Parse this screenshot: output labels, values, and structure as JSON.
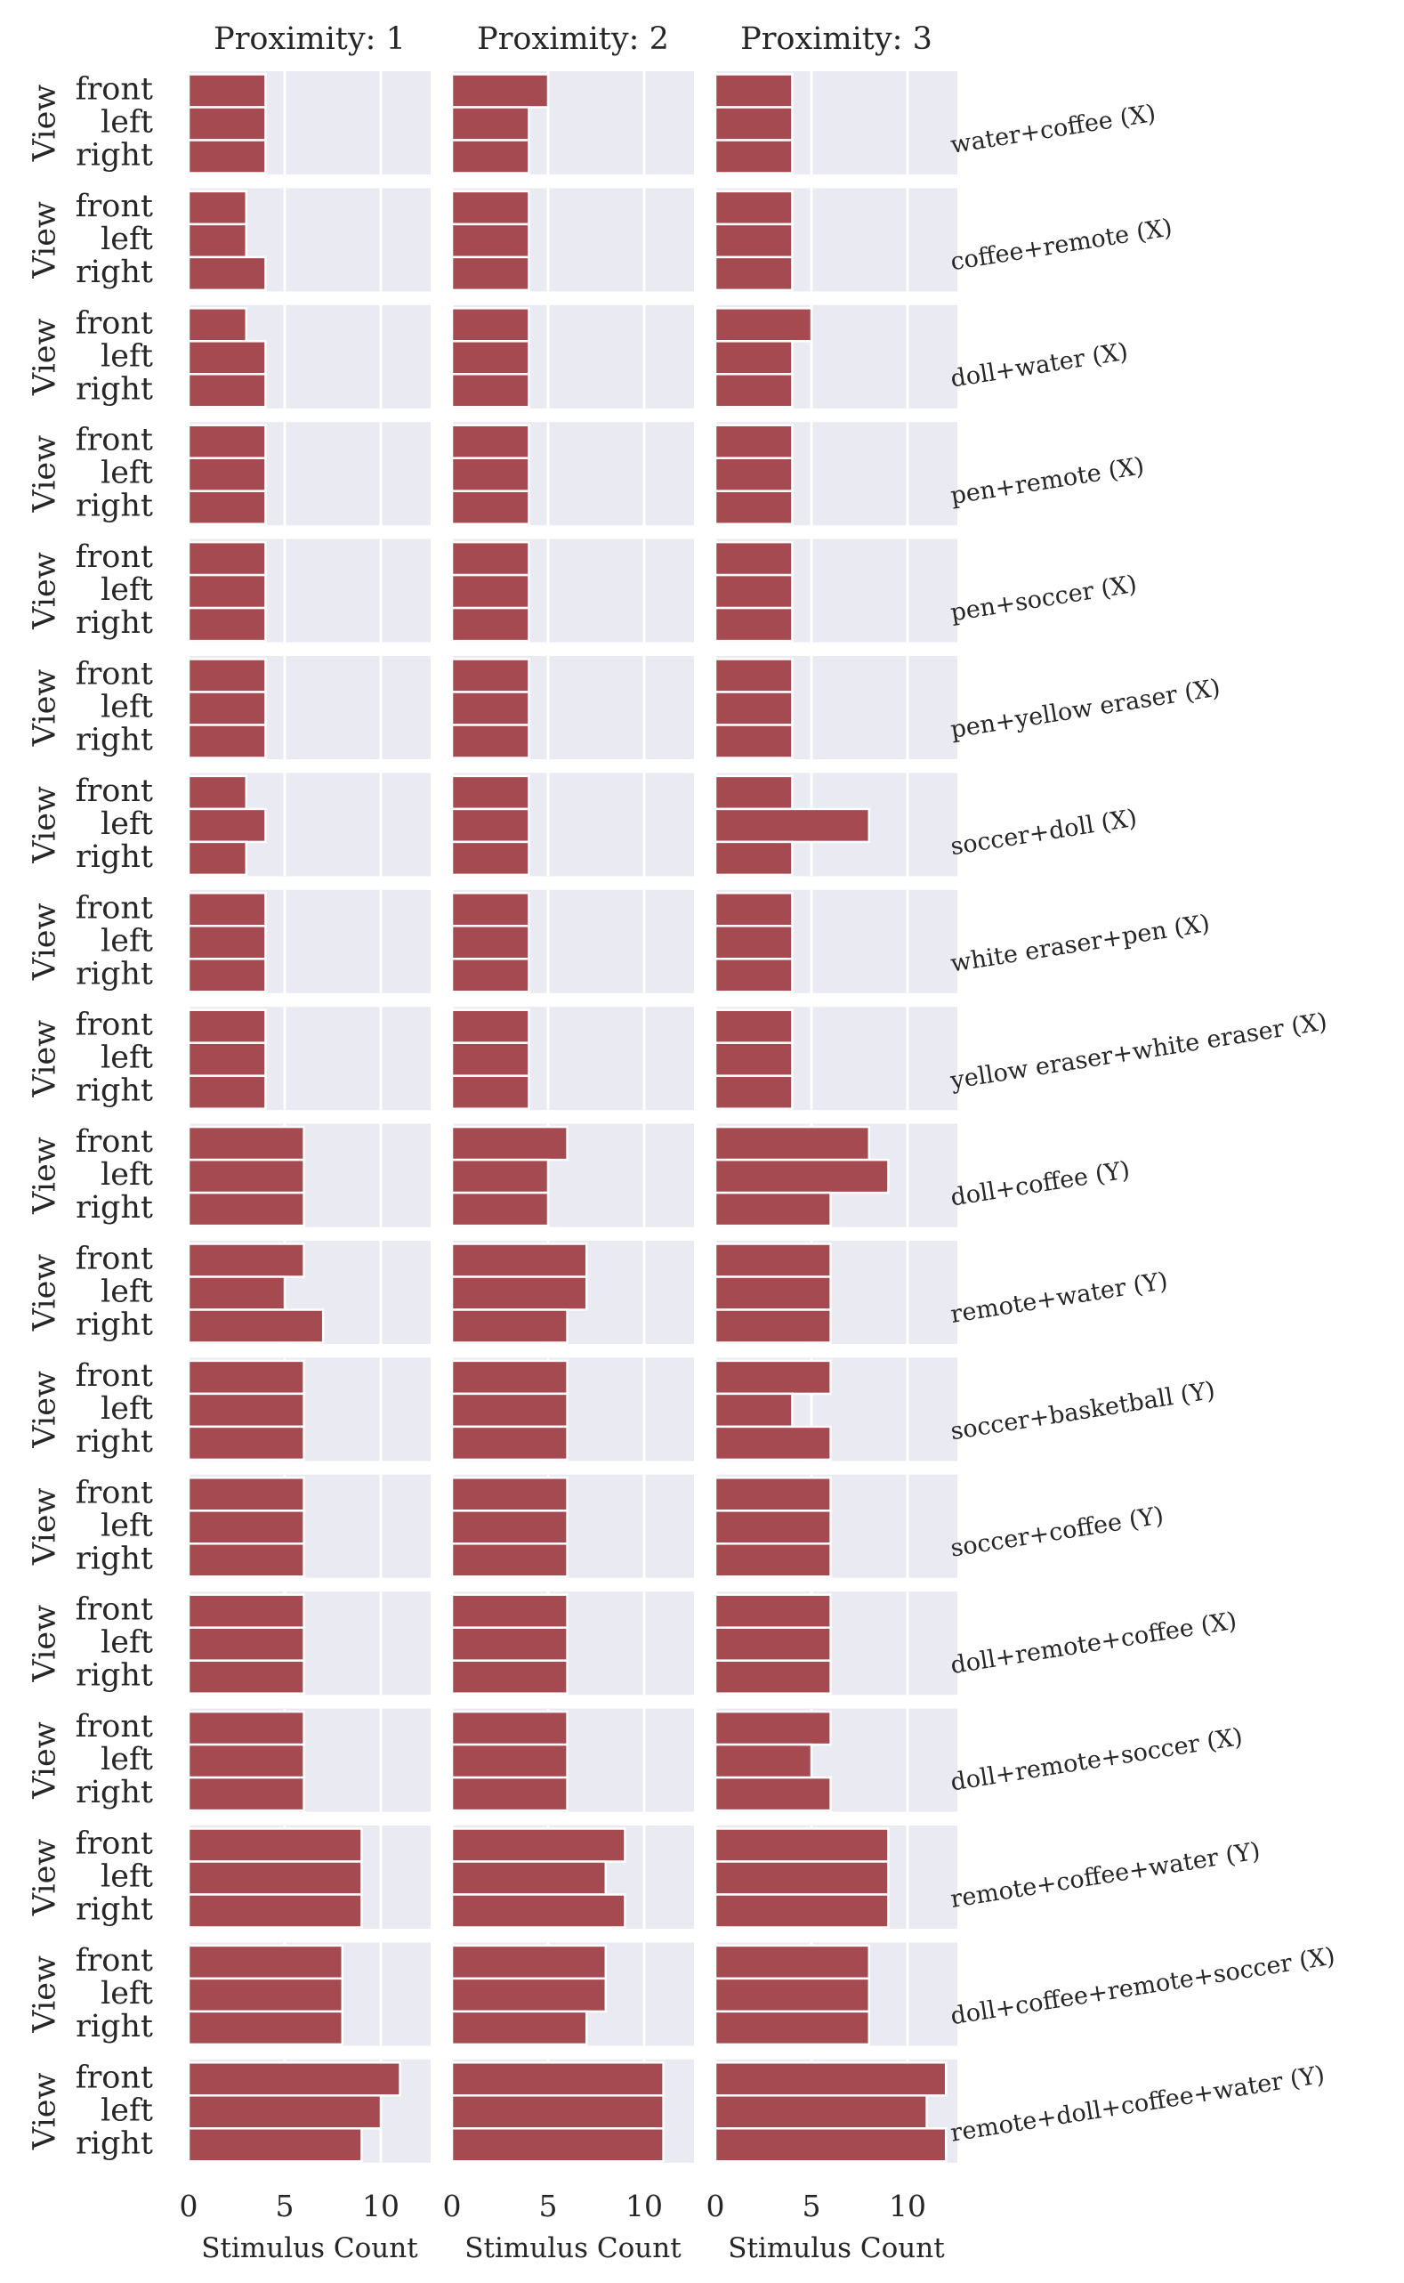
{
  "chart_data": {
    "type": "bar",
    "orientation": "horizontal",
    "facet_columns": [
      "Proximity: 1",
      "Proximity: 2",
      "Proximity: 3"
    ],
    "views": [
      "front",
      "left",
      "right"
    ],
    "ylabel": "View",
    "xlabel": "Stimulus Count",
    "xticks": [
      "0",
      "5",
      "10"
    ],
    "xlim": [
      0,
      12.5
    ],
    "rows": [
      {
        "label": "water+coffee (X)",
        "values": [
          [
            4,
            4,
            4
          ],
          [
            5,
            4,
            4
          ],
          [
            4,
            4,
            4
          ]
        ]
      },
      {
        "label": "coffee+remote (X)",
        "values": [
          [
            3,
            3,
            4
          ],
          [
            4,
            4,
            4
          ],
          [
            4,
            4,
            4
          ]
        ]
      },
      {
        "label": "doll+water (X)",
        "values": [
          [
            3,
            4,
            4
          ],
          [
            4,
            4,
            4
          ],
          [
            5,
            4,
            4
          ]
        ]
      },
      {
        "label": "pen+remote (X)",
        "values": [
          [
            4,
            4,
            4
          ],
          [
            4,
            4,
            4
          ],
          [
            4,
            4,
            4
          ]
        ]
      },
      {
        "label": "pen+soccer (X)",
        "values": [
          [
            4,
            4,
            4
          ],
          [
            4,
            4,
            4
          ],
          [
            4,
            4,
            4
          ]
        ]
      },
      {
        "label": "pen+yellow eraser (X)",
        "values": [
          [
            4,
            4,
            4
          ],
          [
            4,
            4,
            4
          ],
          [
            4,
            4,
            4
          ]
        ]
      },
      {
        "label": "soccer+doll (X)",
        "values": [
          [
            3,
            4,
            3
          ],
          [
            4,
            4,
            4
          ],
          [
            4,
            8,
            4
          ]
        ]
      },
      {
        "label": "white eraser+pen (X)",
        "values": [
          [
            4,
            4,
            4
          ],
          [
            4,
            4,
            4
          ],
          [
            4,
            4,
            4
          ]
        ]
      },
      {
        "label": "yellow eraser+white eraser (X)",
        "values": [
          [
            4,
            4,
            4
          ],
          [
            4,
            4,
            4
          ],
          [
            4,
            4,
            4
          ]
        ]
      },
      {
        "label": "doll+coffee (Y)",
        "values": [
          [
            6,
            6,
            6
          ],
          [
            6,
            5,
            5
          ],
          [
            8,
            9,
            6
          ]
        ]
      },
      {
        "label": "remote+water (Y)",
        "values": [
          [
            6,
            5,
            7
          ],
          [
            7,
            7,
            6
          ],
          [
            6,
            6,
            6
          ]
        ]
      },
      {
        "label": "soccer+basketball (Y)",
        "values": [
          [
            6,
            6,
            6
          ],
          [
            6,
            6,
            6
          ],
          [
            6,
            4,
            6
          ]
        ]
      },
      {
        "label": "soccer+coffee (Y)",
        "values": [
          [
            6,
            6,
            6
          ],
          [
            6,
            6,
            6
          ],
          [
            6,
            6,
            6
          ]
        ]
      },
      {
        "label": "doll+remote+coffee (X)",
        "values": [
          [
            6,
            6,
            6
          ],
          [
            6,
            6,
            6
          ],
          [
            6,
            6,
            6
          ]
        ]
      },
      {
        "label": "doll+remote+soccer (X)",
        "values": [
          [
            6,
            6,
            6
          ],
          [
            6,
            6,
            6
          ],
          [
            6,
            5,
            6
          ]
        ]
      },
      {
        "label": "remote+coffee+water (Y)",
        "values": [
          [
            9,
            9,
            9
          ],
          [
            9,
            8,
            9
          ],
          [
            9,
            9,
            9
          ]
        ]
      },
      {
        "label": "doll+coffee+remote+soccer (X)",
        "values": [
          [
            8,
            8,
            8
          ],
          [
            8,
            8,
            7
          ],
          [
            8,
            8,
            8
          ]
        ]
      },
      {
        "label": "remote+doll+coffee+water (Y)",
        "values": [
          [
            11,
            10,
            9
          ],
          [
            11,
            11,
            11
          ],
          [
            12,
            11,
            12
          ]
        ]
      }
    ],
    "colors": {
      "bar": "#a64a52",
      "panel_background": "#eaeaf2",
      "grid": "#ffffff"
    }
  }
}
